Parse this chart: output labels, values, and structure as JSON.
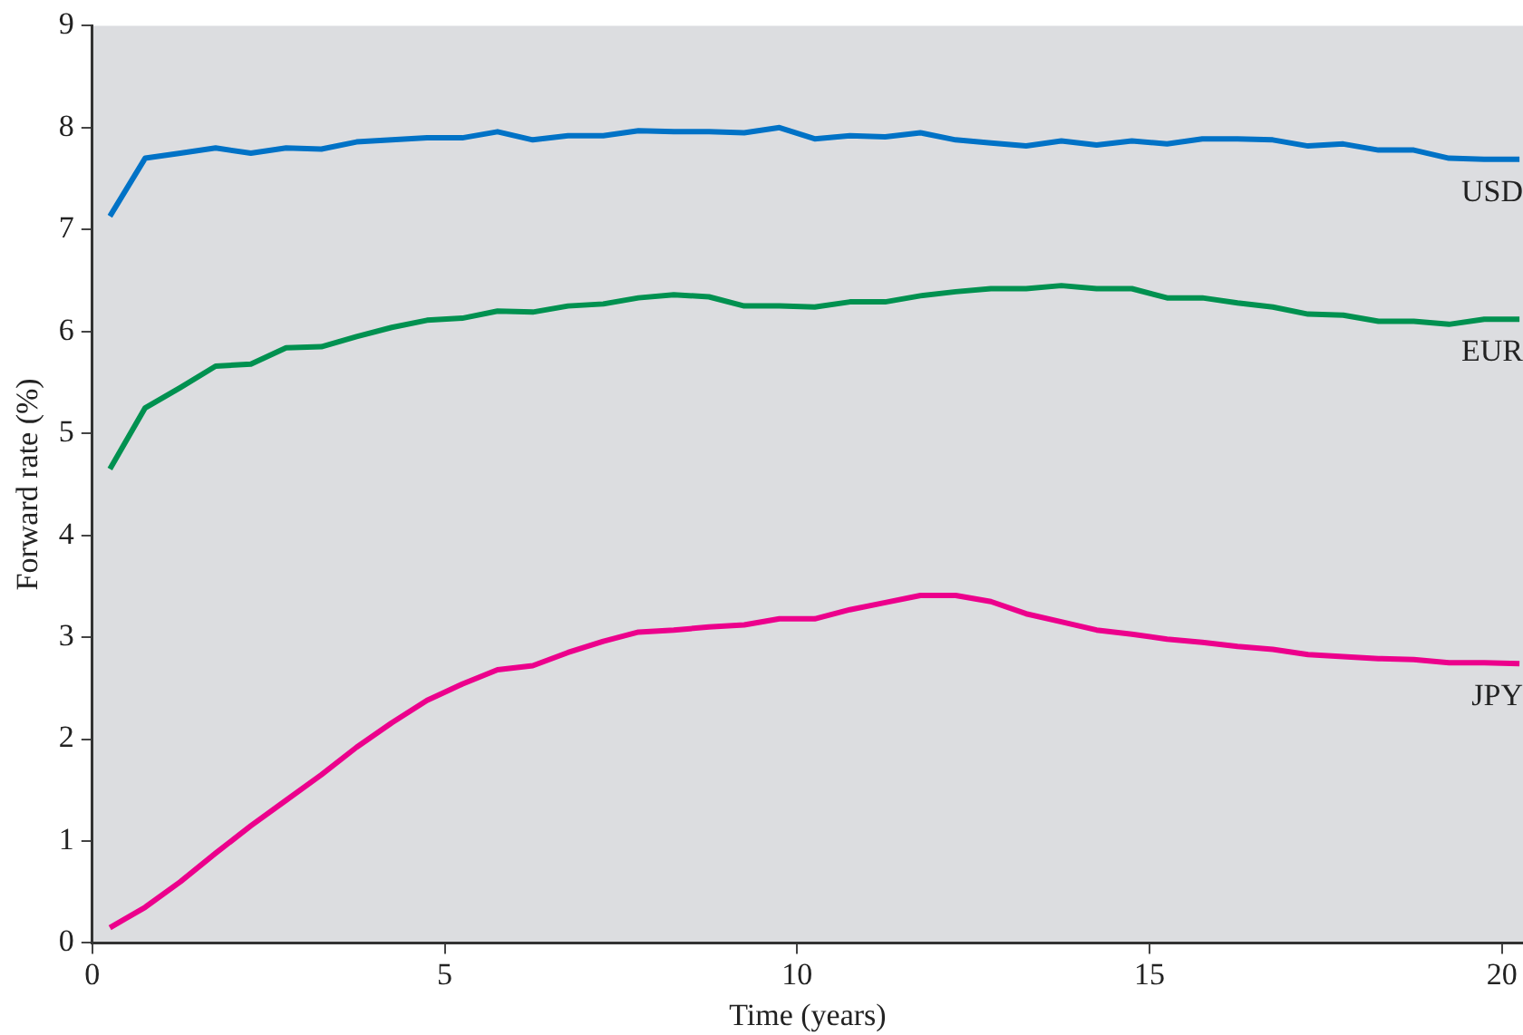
{
  "chart_data": {
    "type": "line",
    "xlabel": "Time (years)",
    "ylabel": "Forward rate (%)",
    "x": [
      0.25,
      0.75,
      1.25,
      1.75,
      2.25,
      2.75,
      3.25,
      3.75,
      4.25,
      4.75,
      5.25,
      5.75,
      6.25,
      6.75,
      7.25,
      7.75,
      8.25,
      8.75,
      9.25,
      9.75,
      10.25,
      10.75,
      11.25,
      11.75,
      12.25,
      12.75,
      13.25,
      13.75,
      14.25,
      14.75,
      15.25,
      15.75,
      16.25,
      16.75,
      17.25,
      17.75,
      18.25,
      18.75,
      19.25,
      19.75,
      20.25
    ],
    "series": [
      {
        "name": "USD",
        "color": "#0072c6",
        "values": [
          7.13,
          7.7,
          7.75,
          7.8,
          7.75,
          7.8,
          7.79,
          7.86,
          7.88,
          7.9,
          7.9,
          7.96,
          7.88,
          7.92,
          7.92,
          7.97,
          7.96,
          7.96,
          7.95,
          8.0,
          7.89,
          7.92,
          7.91,
          7.95,
          7.88,
          7.85,
          7.82,
          7.87,
          7.83,
          7.87,
          7.84,
          7.89,
          7.89,
          7.88,
          7.82,
          7.84,
          7.78,
          7.78,
          7.7,
          7.69,
          7.69
        ]
      },
      {
        "name": "EUR",
        "color": "#009150",
        "values": [
          4.65,
          5.25,
          5.45,
          5.66,
          5.68,
          5.84,
          5.85,
          5.95,
          6.04,
          6.11,
          6.13,
          6.2,
          6.19,
          6.25,
          6.27,
          6.33,
          6.36,
          6.34,
          6.25,
          6.25,
          6.24,
          6.29,
          6.29,
          6.35,
          6.39,
          6.42,
          6.42,
          6.45,
          6.42,
          6.42,
          6.33,
          6.33,
          6.28,
          6.24,
          6.17,
          6.16,
          6.1,
          6.1,
          6.07,
          6.12,
          6.12
        ]
      },
      {
        "name": "JPY",
        "color": "#ec008c",
        "values": [
          0.15,
          0.35,
          0.6,
          0.88,
          1.15,
          1.4,
          1.65,
          1.92,
          2.16,
          2.38,
          2.54,
          2.68,
          2.72,
          2.85,
          2.96,
          3.05,
          3.07,
          3.1,
          3.12,
          3.18,
          3.18,
          3.27,
          3.34,
          3.41,
          3.41,
          3.35,
          3.23,
          3.15,
          3.07,
          3.03,
          2.98,
          2.95,
          2.91,
          2.88,
          2.83,
          2.81,
          2.79,
          2.78,
          2.75,
          2.75,
          2.74
        ]
      }
    ],
    "xlim": [
      0,
      20.3
    ],
    "xticks": [
      0,
      5,
      10,
      15,
      20
    ],
    "ylim": [
      0,
      9
    ],
    "yticks": [
      0,
      1,
      2,
      3,
      4,
      5,
      6,
      7,
      8,
      9
    ],
    "grid": false,
    "legend": false,
    "marker": "none",
    "line_style": "solid"
  }
}
